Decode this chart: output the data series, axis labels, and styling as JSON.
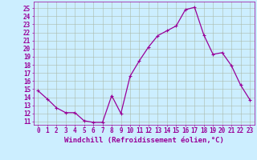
{
  "x": [
    0,
    1,
    2,
    3,
    4,
    5,
    6,
    7,
    8,
    9,
    10,
    11,
    12,
    13,
    14,
    15,
    16,
    17,
    18,
    19,
    20,
    21,
    22,
    23
  ],
  "y": [
    14.8,
    13.8,
    12.7,
    12.1,
    12.1,
    11.1,
    10.9,
    10.9,
    14.2,
    12.0,
    16.6,
    18.5,
    20.2,
    21.6,
    22.2,
    22.8,
    24.8,
    25.1,
    21.7,
    19.3,
    19.5,
    17.9,
    15.5,
    13.7
  ],
  "line_color": "#990099",
  "marker": "+",
  "marker_size": 3,
  "marker_color": "#990099",
  "bg_color": "#cceeff",
  "grid_color": "#aabbaa",
  "xlabel": "Windchill (Refroidissement éolien,°C)",
  "xlabel_color": "#990099",
  "ylabel_values": [
    11,
    12,
    13,
    14,
    15,
    16,
    17,
    18,
    19,
    20,
    21,
    22,
    23,
    24,
    25
  ],
  "ylim": [
    10.6,
    25.8
  ],
  "xlim": [
    -0.5,
    23.5
  ],
  "tick_color": "#990099",
  "label_fontsize": 5.5,
  "xlabel_fontsize": 6.5,
  "linewidth": 0.9
}
